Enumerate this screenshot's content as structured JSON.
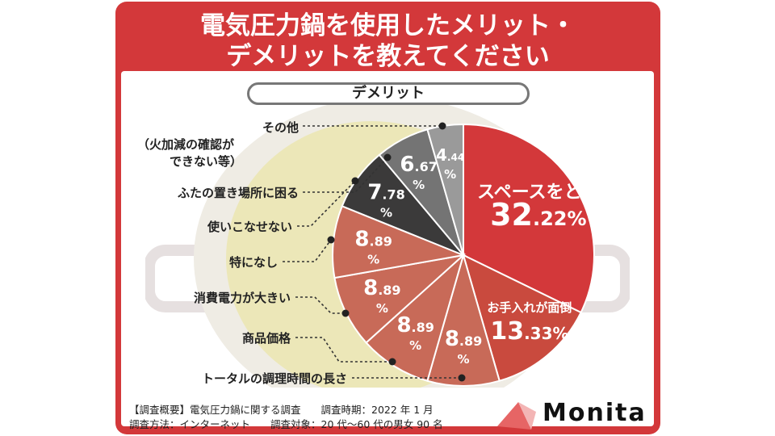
{
  "title_line1": "電気圧力鍋を使用したメリット・",
  "title_line2": "デメリットを教えてください",
  "section_label": "デメリット",
  "chart_data": {
    "type": "pie",
    "title": "デメリット",
    "unit": "%",
    "slices": [
      {
        "label": "スペースをとる",
        "value": 32.22,
        "color": "#d3383a"
      },
      {
        "label": "お手入れが面倒",
        "value": 13.33,
        "color": "#c94a3e"
      },
      {
        "label": "トータルの調理時間の長さ",
        "value": 8.89,
        "color": "#c86a58"
      },
      {
        "label": "商品価格",
        "value": 8.89,
        "color": "#c86a58"
      },
      {
        "label": "消費電力が大きい",
        "value": 8.89,
        "color": "#c86a58"
      },
      {
        "label": "特になし",
        "value": 8.89,
        "color": "#c86a58"
      },
      {
        "label": "使いこなせない",
        "value": 7.78,
        "color": "#3b3a3a"
      },
      {
        "label": "ふたの置き場所に困る",
        "value": 6.67,
        "color": "#747474"
      },
      {
        "label": "その他（火加減の確認ができない等）",
        "value": 4.44,
        "color": "#9a9a9a"
      }
    ],
    "callout_labels": [
      "その他",
      "（火加減の確認が",
      "できない等）",
      "ふたの置き場所に困る",
      "使いこなせない",
      "特になし",
      "消費電力が大きい",
      "商品価格",
      "トータルの調理時間の長さ"
    ]
  },
  "footer": {
    "line1": "【調査概要】電気圧力鍋に関する調査　　調査時期：2022 年 1 月",
    "line2": "調査方法：インターネット　　調査対象：20 代～60 代の男女 90 名"
  },
  "brand": "Monita"
}
